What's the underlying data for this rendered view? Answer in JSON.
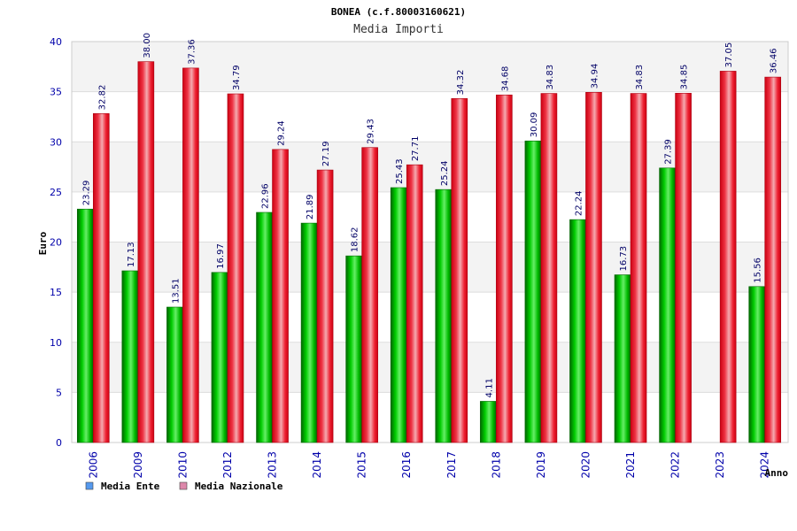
{
  "chart_data": {
    "type": "bar",
    "title": "BONEA (c.f.80003160621)",
    "subtitle": "Media Importi",
    "ylabel": "Euro",
    "xlabel": "Anno",
    "ylim": [
      0,
      40
    ],
    "yticks": [
      0,
      5,
      10,
      15,
      20,
      25,
      30,
      35,
      40
    ],
    "grid": true,
    "legend_position": "bottom-left",
    "categories": [
      "2006",
      "2009",
      "2010",
      "2012",
      "2013",
      "2014",
      "2015",
      "2016",
      "2017",
      "2018",
      "2019",
      "2020",
      "2021",
      "2022",
      "2023",
      "2024"
    ],
    "series": [
      {
        "name": "Media Ente",
        "color": "#00aa00",
        "legend_color": "#5599ee",
        "values": [
          23.29,
          17.13,
          13.51,
          16.97,
          22.96,
          21.89,
          18.62,
          25.43,
          25.24,
          4.11,
          30.09,
          22.24,
          16.73,
          27.39,
          null,
          15.56
        ],
        "labels": [
          "23.29",
          "17.13",
          "13.51",
          "16.97",
          "22.96",
          "21.89",
          "18.62",
          "25.43",
          "25.24",
          "4.11",
          "30.09",
          "22.24",
          "16.73",
          "27.39",
          "",
          "15.56"
        ]
      },
      {
        "name": "Media Nazionale",
        "color": "#ee1122",
        "legend_color": "#dd88aa",
        "values": [
          32.82,
          38.0,
          37.36,
          34.79,
          29.24,
          27.19,
          29.43,
          27.71,
          34.32,
          34.68,
          34.83,
          34.94,
          34.83,
          34.85,
          37.05,
          36.46
        ],
        "labels": [
          "32.82",
          "38.00",
          "37.36",
          "34.79",
          "29.24",
          "27.19",
          "29.43",
          "27.71",
          "34.32",
          "34.68",
          "34.83",
          "34.94",
          "34.83",
          "34.85",
          "37.05",
          "36.46"
        ]
      }
    ]
  }
}
